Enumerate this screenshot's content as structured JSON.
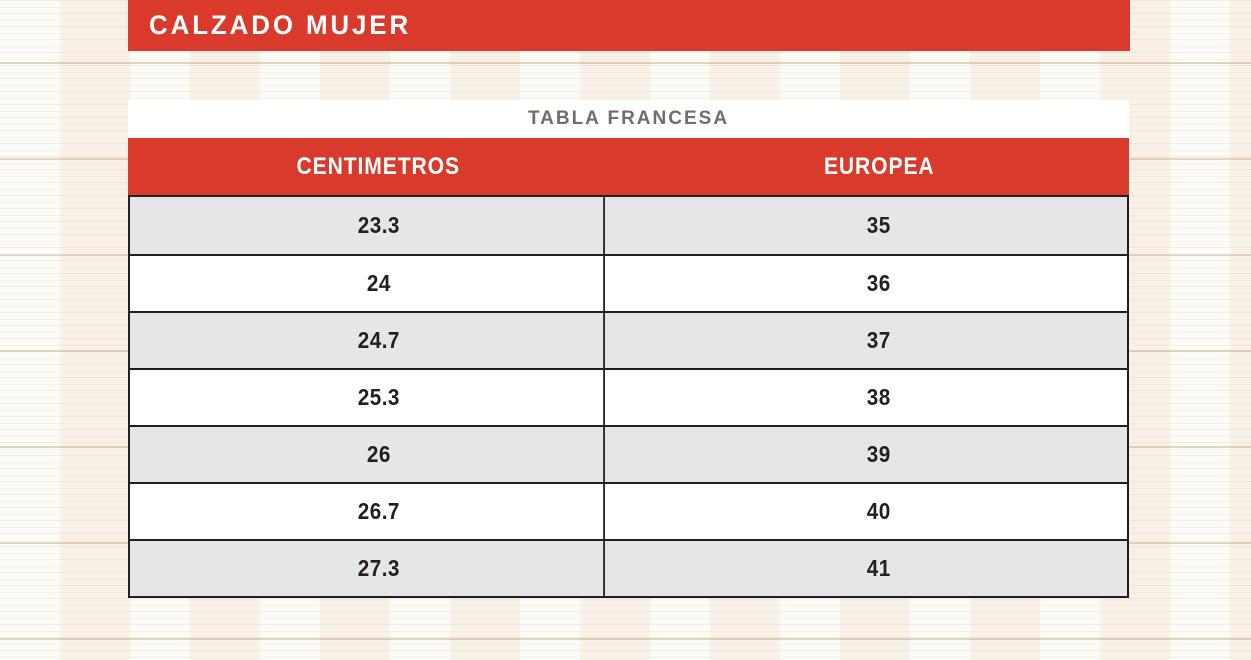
{
  "header": {
    "title": "CALZADO MUJER"
  },
  "table": {
    "caption": "TABLA FRANCESA",
    "columns": [
      "CENTIMETROS",
      "EUROPEA"
    ],
    "rows": [
      {
        "cm": "23.3",
        "eu": "35"
      },
      {
        "cm": "24",
        "eu": "36"
      },
      {
        "cm": "24.7",
        "eu": "37"
      },
      {
        "cm": "25.3",
        "eu": "38"
      },
      {
        "cm": "26",
        "eu": "39"
      },
      {
        "cm": "26.7",
        "eu": "40"
      },
      {
        "cm": "27.3",
        "eu": "41"
      }
    ]
  },
  "colors": {
    "accent_red": "#d93a2b",
    "row_alt_gray": "#e4e6e7",
    "cell_text": "#231f20",
    "caption_gray": "#6d6e71",
    "background_wood": "#f9f6f0"
  }
}
